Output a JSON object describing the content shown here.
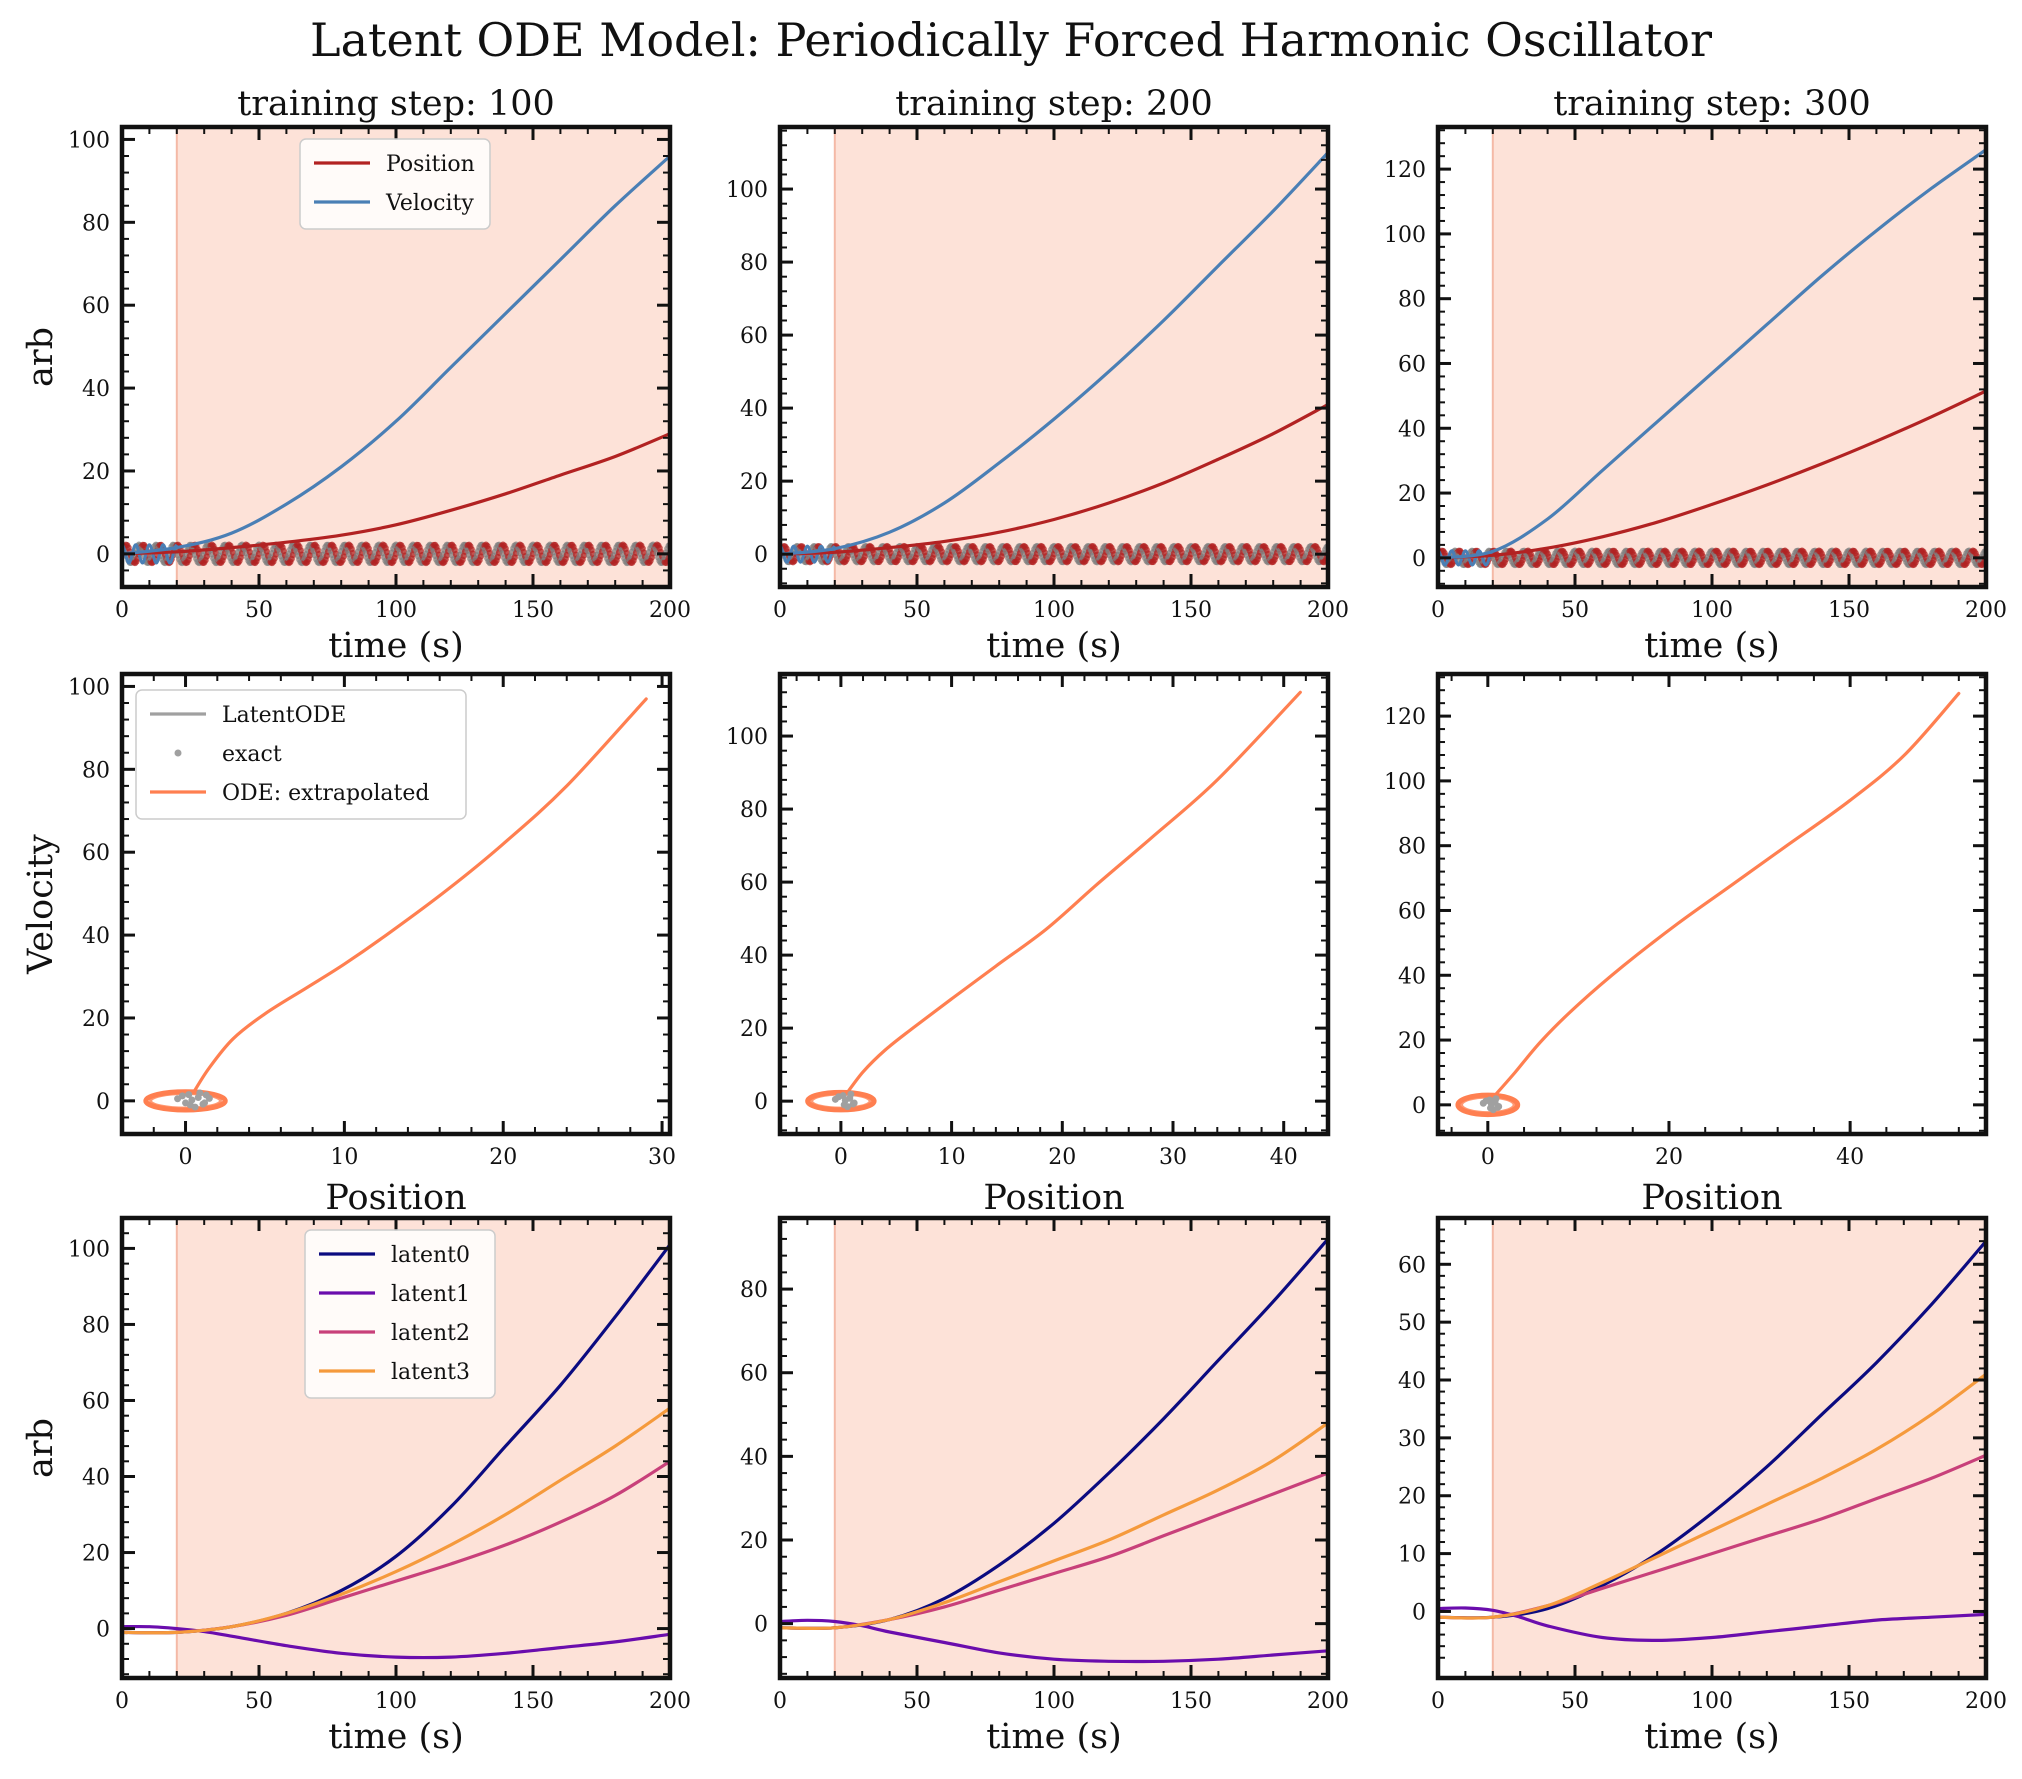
{
  "suptitle": "Latent ODE Model: Periodically Forced Harmonic Oscillator",
  "colors": {
    "position": "#b22222",
    "velocity": "#4a7fb5",
    "exact_points": "#a0a0a0",
    "latentode": "#a0a0a0",
    "ode_extrapolated": "#ff7f50",
    "latent0": "#0b0b80",
    "latent1": "#6a0dad",
    "latent2": "#c8407a",
    "latent3": "#f59a3c",
    "extrapolation_region": "#fde2d8"
  },
  "chart_data": [
    {
      "panel": "row1-col1",
      "type": "line",
      "title": "training step: 100",
      "xlabel": "time (s)",
      "ylabel": "arb",
      "xlim": [
        0,
        200
      ],
      "ylim": [
        -8,
        103
      ],
      "xticks": [
        0,
        50,
        100,
        150,
        200
      ],
      "yticks": [
        0,
        20,
        40,
        60,
        80,
        100
      ],
      "shaded_region": [
        20,
        200
      ],
      "legend": {
        "placement": "top-center",
        "entries": [
          "Position",
          "Velocity"
        ]
      },
      "series": [
        {
          "name": "Position",
          "x": [
            0,
            20,
            40,
            60,
            80,
            100,
            120,
            140,
            160,
            180,
            200
          ],
          "y": [
            0,
            0.5,
            1.5,
            2.8,
            4.5,
            7,
            10.5,
            14.5,
            19,
            23.5,
            29
          ]
        },
        {
          "name": "Velocity",
          "x": [
            0,
            20,
            40,
            60,
            80,
            100,
            120,
            140,
            160,
            180,
            200
          ],
          "y": [
            0,
            1.5,
            5,
            12,
            21,
            32,
            45,
            58,
            71,
            84,
            96
          ]
        }
      ],
      "exact_oscillation": {
        "x_range": [
          0,
          200
        ],
        "amplitude": 2.2,
        "cycles": 32
      }
    },
    {
      "panel": "row1-col2",
      "type": "line",
      "title": "training step: 200",
      "xlabel": "time (s)",
      "ylabel": "",
      "xlim": [
        0,
        200
      ],
      "ylim": [
        -9,
        117
      ],
      "xticks": [
        0,
        50,
        100,
        150,
        200
      ],
      "yticks": [
        0,
        20,
        40,
        60,
        80,
        100
      ],
      "shaded_region": [
        20,
        200
      ],
      "series": [
        {
          "name": "Position",
          "x": [
            0,
            20,
            40,
            60,
            80,
            100,
            120,
            140,
            160,
            180,
            200
          ],
          "y": [
            0,
            0.5,
            1.8,
            3.5,
            6,
            9.5,
            14,
            19.5,
            26,
            33,
            41
          ]
        },
        {
          "name": "Velocity",
          "x": [
            0,
            20,
            40,
            60,
            80,
            100,
            120,
            140,
            160,
            180,
            200
          ],
          "y": [
            0,
            1.5,
            6,
            14,
            25,
            37,
            50,
            64,
            79,
            94,
            110
          ]
        }
      ],
      "exact_oscillation": {
        "x_range": [
          0,
          200
        ],
        "amplitude": 2.2,
        "cycles": 32
      }
    },
    {
      "panel": "row1-col3",
      "type": "line",
      "title": "training step: 300",
      "xlabel": "time (s)",
      "ylabel": "",
      "xlim": [
        0,
        200
      ],
      "ylim": [
        -9,
        133
      ],
      "xticks": [
        0,
        50,
        100,
        150,
        200
      ],
      "yticks": [
        0,
        20,
        40,
        60,
        80,
        100,
        120
      ],
      "shaded_region": [
        20,
        200
      ],
      "series": [
        {
          "name": "Position",
          "x": [
            0,
            20,
            40,
            60,
            80,
            100,
            120,
            140,
            160,
            180,
            200
          ],
          "y": [
            0,
            0.8,
            3,
            6.5,
            11,
            16.5,
            22.5,
            29,
            36,
            43.5,
            51.5
          ]
        },
        {
          "name": "Velocity",
          "x": [
            0,
            20,
            40,
            60,
            80,
            100,
            120,
            140,
            160,
            180,
            200
          ],
          "y": [
            0,
            2,
            12,
            27,
            42,
            57,
            72,
            87,
            101,
            114,
            126
          ]
        }
      ],
      "exact_oscillation": {
        "x_range": [
          0,
          200
        ],
        "amplitude": 2.2,
        "cycles": 32
      }
    },
    {
      "panel": "row2-col1",
      "type": "line",
      "title": "",
      "xlabel": "Position",
      "ylabel": "Velocity",
      "xlim": [
        -4,
        30.5
      ],
      "ylim": [
        -8,
        103
      ],
      "xticks": [
        0,
        10,
        20,
        30
      ],
      "yticks": [
        0,
        20,
        40,
        60,
        80,
        100
      ],
      "legend": {
        "placement": "top-left",
        "entries": [
          "LatentODE",
          "exact",
          "ODE: extrapolated"
        ]
      },
      "series": [
        {
          "name": "ODE: extrapolated",
          "x": [
            0.5,
            1.5,
            3,
            5,
            7.5,
            10,
            13,
            16.5,
            20,
            24,
            29
          ],
          "y": [
            2,
            8,
            15,
            21,
            27,
            33,
            41,
            51,
            62,
            76,
            97
          ]
        }
      ],
      "phase_loop": {
        "center": [
          0,
          0
        ],
        "rx": 2.5,
        "ry": 2.2
      },
      "exact_points": {
        "x": [
          -0.5,
          0.2,
          0.8,
          1.2,
          1.5,
          0.9,
          0.3,
          -0.2,
          0.6,
          1.1,
          0.4,
          0.0,
          1.3
        ],
        "y": [
          0.5,
          1.5,
          0.8,
          -0.5,
          0.6,
          1.9,
          -1.0,
          1.2,
          -1.5,
          -0.8,
          0.2,
          -0.5,
          1.4
        ]
      }
    },
    {
      "panel": "row2-col2",
      "type": "line",
      "title": "",
      "xlabel": "Position",
      "ylabel": "",
      "xlim": [
        -5.5,
        44
      ],
      "ylim": [
        -9,
        117
      ],
      "xticks": [
        0,
        10,
        20,
        30,
        40
      ],
      "yticks": [
        0,
        20,
        40,
        60,
        80,
        100
      ],
      "series": [
        {
          "name": "ODE: extrapolated",
          "x": [
            0.5,
            2,
            4,
            6.5,
            10,
            14,
            18.5,
            23,
            28,
            34,
            41.5
          ],
          "y": [
            2,
            8,
            14,
            20,
            28,
            37,
            47,
            59,
            72,
            88,
            112
          ]
        }
      ],
      "phase_loop": {
        "center": [
          0,
          0
        ],
        "rx": 3.0,
        "ry": 2.4
      },
      "exact_points": {
        "x": [
          -0.5,
          0.2,
          0.8,
          1.2,
          0.9,
          0.3,
          -0.2,
          0.6,
          1.1,
          0.4
        ],
        "y": [
          0.5,
          1.5,
          0.8,
          -0.5,
          1.9,
          -1.0,
          1.2,
          -1.5,
          -0.8,
          0.2
        ]
      }
    },
    {
      "panel": "row2-col3",
      "type": "line",
      "title": "",
      "xlabel": "Position",
      "ylabel": "",
      "xlim": [
        -5.5,
        55
      ],
      "ylim": [
        -9,
        133
      ],
      "xticks": [
        0,
        20,
        40
      ],
      "yticks": [
        0,
        20,
        40,
        60,
        80,
        100,
        120
      ],
      "series": [
        {
          "name": "ODE: extrapolated",
          "x": [
            0.5,
            3,
            6,
            10,
            15,
            21,
            27,
            33,
            40,
            46,
            52
          ],
          "y": [
            2,
            10,
            20,
            31,
            43,
            56,
            68,
            80,
            94,
            108,
            127
          ]
        }
      ],
      "phase_loop": {
        "center": [
          0,
          0
        ],
        "rx": 3.3,
        "ry": 3.0
      },
      "exact_points": {
        "x": [
          -0.5,
          0.2,
          0.8,
          1.2,
          0.9,
          0.3,
          -0.2,
          0.6,
          1.1,
          0.4
        ],
        "y": [
          0.5,
          1.5,
          0.8,
          -0.5,
          1.9,
          -1.0,
          1.2,
          -1.5,
          -0.8,
          0.2
        ]
      }
    },
    {
      "panel": "row3-col1",
      "type": "line",
      "title": "",
      "xlabel": "time (s)",
      "ylabel": "arb",
      "xlim": [
        0,
        200
      ],
      "ylim": [
        -13,
        108
      ],
      "xticks": [
        0,
        50,
        100,
        150,
        200
      ],
      "yticks": [
        0,
        20,
        40,
        60,
        80,
        100
      ],
      "shaded_region": [
        20,
        200
      ],
      "legend": {
        "placement": "top-center",
        "entries": [
          "latent0",
          "latent1",
          "latent2",
          "latent3"
        ]
      },
      "series": [
        {
          "name": "latent0",
          "x": [
            0,
            20,
            40,
            60,
            80,
            100,
            120,
            140,
            160,
            180,
            200
          ],
          "y": [
            -1,
            -1,
            0.5,
            4,
            10,
            19,
            32,
            48,
            64,
            82,
            101
          ]
        },
        {
          "name": "latent1",
          "x": [
            0,
            10,
            20,
            30,
            40,
            60,
            80,
            100,
            120,
            140,
            160,
            180,
            200
          ],
          "y": [
            0.5,
            0.5,
            0,
            -0.8,
            -2,
            -4.5,
            -6.5,
            -7.5,
            -7.5,
            -6.5,
            -5,
            -3.5,
            -1.5
          ]
        },
        {
          "name": "latent2",
          "x": [
            0,
            20,
            40,
            60,
            80,
            100,
            120,
            140,
            160,
            180,
            200
          ],
          "y": [
            -1,
            -1,
            0.5,
            3.5,
            8,
            12.5,
            17,
            22,
            28,
            35,
            44
          ]
        },
        {
          "name": "latent3",
          "x": [
            0,
            20,
            40,
            60,
            80,
            100,
            120,
            140,
            160,
            180,
            200
          ],
          "y": [
            -1,
            -1,
            0.5,
            4,
            9,
            15,
            22,
            30,
            39,
            48,
            58
          ]
        }
      ]
    },
    {
      "panel": "row3-col2",
      "type": "line",
      "title": "",
      "xlabel": "time (s)",
      "ylabel": "",
      "xlim": [
        0,
        200
      ],
      "ylim": [
        -13,
        97
      ],
      "xticks": [
        0,
        50,
        100,
        150,
        200
      ],
      "yticks": [
        0,
        20,
        40,
        60,
        80
      ],
      "shaded_region": [
        20,
        200
      ],
      "series": [
        {
          "name": "latent0",
          "x": [
            0,
            20,
            40,
            60,
            80,
            100,
            120,
            140,
            160,
            180,
            200
          ],
          "y": [
            -1,
            -1,
            1,
            6,
            14,
            24,
            36,
            49,
            63,
            77,
            92
          ]
        },
        {
          "name": "latent1",
          "x": [
            0,
            10,
            20,
            30,
            40,
            60,
            80,
            100,
            120,
            140,
            160,
            180,
            200
          ],
          "y": [
            0.5,
            0.8,
            0.5,
            -0.5,
            -2,
            -4.5,
            -7,
            -8.5,
            -9,
            -9,
            -8.5,
            -7.5,
            -6.5
          ]
        },
        {
          "name": "latent2",
          "x": [
            0,
            20,
            40,
            60,
            80,
            100,
            120,
            140,
            160,
            180,
            200
          ],
          "y": [
            -1,
            -1,
            1,
            4,
            8,
            12,
            16,
            21,
            26,
            31,
            36
          ]
        },
        {
          "name": "latent3",
          "x": [
            0,
            20,
            40,
            60,
            80,
            100,
            120,
            140,
            160,
            180,
            200
          ],
          "y": [
            -1,
            -1,
            1,
            5,
            10,
            15,
            20,
            26,
            32,
            39,
            48
          ]
        }
      ]
    },
    {
      "panel": "row3-col3",
      "type": "line",
      "title": "",
      "xlabel": "time (s)",
      "ylabel": "",
      "xlim": [
        0,
        200
      ],
      "ylim": [
        -11.5,
        68
      ],
      "xticks": [
        0,
        50,
        100,
        150,
        200
      ],
      "yticks": [
        0,
        10,
        20,
        30,
        40,
        50,
        60
      ],
      "shaded_region": [
        20,
        200
      ],
      "series": [
        {
          "name": "latent0",
          "x": [
            0,
            20,
            40,
            60,
            80,
            100,
            120,
            140,
            160,
            180,
            200
          ],
          "y": [
            -1,
            -1,
            0.5,
            4.5,
            10,
            17,
            25,
            34,
            43,
            53,
            64
          ]
        },
        {
          "name": "latent1",
          "x": [
            0,
            10,
            20,
            30,
            40,
            60,
            80,
            100,
            120,
            140,
            160,
            180,
            200
          ],
          "y": [
            0.5,
            0.6,
            0.2,
            -1,
            -2.5,
            -4.5,
            -5,
            -4.5,
            -3.5,
            -2.5,
            -1.5,
            -1,
            -0.5
          ]
        },
        {
          "name": "latent2",
          "x": [
            0,
            20,
            40,
            60,
            80,
            100,
            120,
            140,
            160,
            180,
            200
          ],
          "y": [
            -1,
            -1,
            1,
            4,
            7,
            10,
            13,
            16,
            19.5,
            23,
            27
          ]
        },
        {
          "name": "latent3",
          "x": [
            0,
            20,
            40,
            60,
            80,
            100,
            120,
            140,
            160,
            180,
            200
          ],
          "y": [
            -1,
            -1,
            1,
            5,
            9.5,
            14,
            18.5,
            23,
            28,
            34,
            41
          ]
        }
      ]
    }
  ]
}
